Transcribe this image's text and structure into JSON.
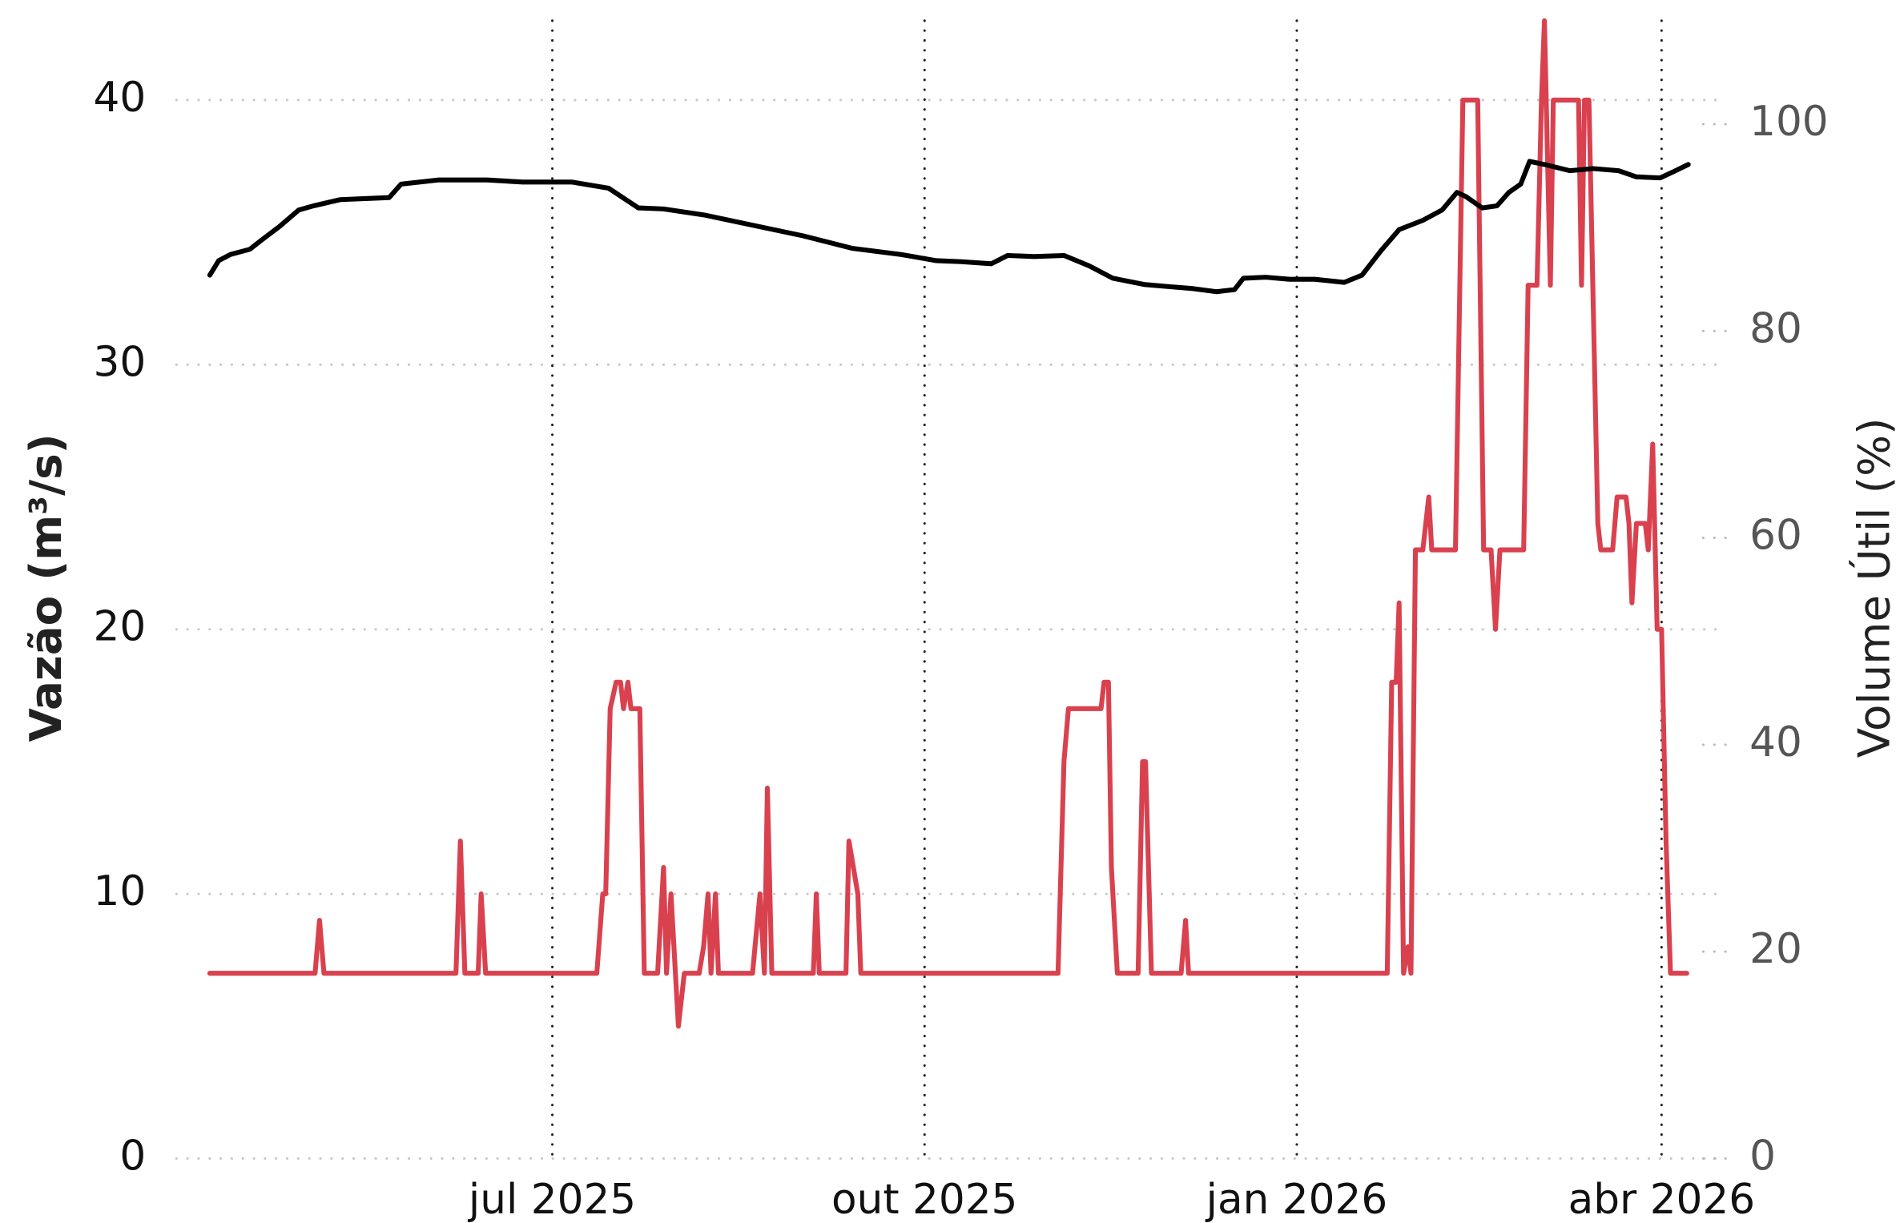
{
  "chart_data": {
    "type": "line",
    "y_label": "Vazão (m³/s)",
    "y2_label": "Volume Útil (%)",
    "xlim": [
      2025.2465,
      2026.2843
    ],
    "xticks": [
      {
        "value": 2025.5,
        "label": "jul 2025"
      },
      {
        "value": 2025.751,
        "label": "out 2025"
      },
      {
        "value": 2026.002,
        "label": "jan 2026"
      },
      {
        "value": 2026.248,
        "label": "abr 2026"
      }
    ],
    "ylim": [
      0,
      43
    ],
    "yticks": [
      0,
      10,
      20,
      30,
      40
    ],
    "y2lim": [
      0,
      110
    ],
    "y2ticks": [
      0,
      20,
      40,
      60,
      80,
      100
    ],
    "grid": true,
    "series": [
      {
        "color": "#d9414f",
        "axis": "y",
        "x": [
          2025.269,
          2025.34,
          2025.343,
          2025.346,
          2025.435,
          2025.438,
          2025.441,
          2025.45,
          2025.452,
          2025.455,
          2025.53,
          2025.534,
          2025.536,
          2025.539,
          2025.543,
          2025.546,
          2025.548,
          2025.551,
          2025.553,
          2025.559,
          2025.562,
          2025.571,
          2025.575,
          2025.577,
          2025.58,
          2025.583,
          2025.585,
          2025.589,
          2025.599,
          2025.602,
          2025.605,
          2025.607,
          2025.61,
          2025.612,
          2025.635,
          2025.64,
          2025.643,
          2025.645,
          2025.648,
          2025.676,
          2025.678,
          2025.68,
          2025.698,
          2025.7,
          2025.706,
          2025.708,
          2025.841,
          2025.845,
          2025.848,
          2025.87,
          2025.872,
          2025.875,
          2025.877,
          2025.881,
          2025.895,
          2025.898,
          2025.9,
          2025.904,
          2025.924,
          2025.927,
          2025.929,
          2026.063,
          2026.066,
          2026.069,
          2026.071,
          2026.074,
          2026.077,
          2026.079,
          2026.082,
          2026.087,
          2026.091,
          2026.093,
          2026.109,
          2026.114,
          2026.124,
          2026.128,
          2026.133,
          2026.136,
          2026.139,
          2026.155,
          2026.158,
          2026.164,
          2026.167,
          2026.169,
          2026.173,
          2026.175,
          2026.192,
          2026.194,
          2026.196,
          2026.199,
          2026.205,
          2026.207,
          2026.215,
          2026.218,
          2026.224,
          2026.226,
          2026.228,
          2026.231,
          2026.237,
          2026.239,
          2026.242,
          2026.245,
          2026.248,
          2026.251,
          2026.254,
          2026.265
        ],
        "values": [
          7,
          7,
          9,
          7,
          7,
          12,
          7,
          7,
          10,
          7,
          7,
          10,
          10,
          17,
          18,
          18,
          17,
          18,
          17,
          17,
          7,
          7,
          11,
          7,
          10,
          7,
          5,
          7,
          7,
          8,
          10,
          7,
          10,
          7,
          7,
          10,
          7,
          14,
          7,
          7,
          10,
          7,
          7,
          12,
          10,
          7,
          7,
          15,
          17,
          17,
          18,
          18,
          11,
          7,
          7,
          15,
          15,
          7,
          7,
          9,
          7,
          7,
          18,
          18,
          21,
          7,
          8,
          7,
          23,
          23,
          25,
          23,
          23,
          40,
          40,
          23,
          23,
          20,
          23,
          23,
          33,
          33,
          40,
          43,
          33,
          40,
          40,
          33,
          40,
          40,
          24,
          23,
          23,
          25,
          25,
          24,
          21,
          24,
          24,
          23,
          27,
          20,
          20,
          12,
          7,
          7
        ]
      },
      {
        "color": "#000000",
        "axis": "y2",
        "x": [
          2025.269,
          2025.275,
          2025.283,
          2025.296,
          2025.304,
          2025.316,
          2025.329,
          2025.339,
          2025.357,
          2025.374,
          2025.39,
          2025.398,
          2025.423,
          2025.456,
          2025.48,
          2025.513,
          2025.538,
          2025.558,
          2025.575,
          2025.603,
          2025.636,
          2025.669,
          2025.702,
          2025.735,
          2025.759,
          2025.776,
          2025.796,
          2025.807,
          2025.825,
          2025.845,
          2025.862,
          2025.878,
          2025.899,
          2025.915,
          2025.932,
          2025.948,
          2025.96,
          2025.966,
          2025.981,
          2025.997,
          2026.014,
          2026.034,
          2026.046,
          2026.059,
          2026.071,
          2026.087,
          2026.1,
          2026.11,
          2026.116,
          2026.127,
          2026.137,
          2026.145,
          2026.153,
          2026.159,
          2026.169,
          2026.186,
          2026.202,
          2026.219,
          2026.231,
          2026.247,
          2026.256,
          2026.266
        ],
        "values": [
          85.4,
          86.8,
          87.4,
          87.9,
          88.8,
          90.1,
          91.7,
          92.1,
          92.7,
          92.8,
          92.9,
          94.2,
          94.6,
          94.6,
          94.4,
          94.4,
          93.8,
          91.9,
          91.8,
          91.2,
          90.2,
          89.2,
          88.0,
          87.4,
          86.8,
          86.7,
          86.5,
          87.3,
          87.2,
          87.3,
          86.3,
          85.1,
          84.5,
          84.3,
          84.1,
          83.8,
          84.0,
          85.1,
          85.2,
          85.0,
          85.0,
          84.7,
          85.4,
          87.8,
          89.8,
          90.7,
          91.7,
          93.4,
          93.0,
          91.9,
          92.1,
          93.4,
          94.2,
          96.4,
          96.1,
          95.5,
          95.7,
          95.5,
          94.9,
          94.8,
          95.4,
          96.1
        ]
      }
    ]
  }
}
